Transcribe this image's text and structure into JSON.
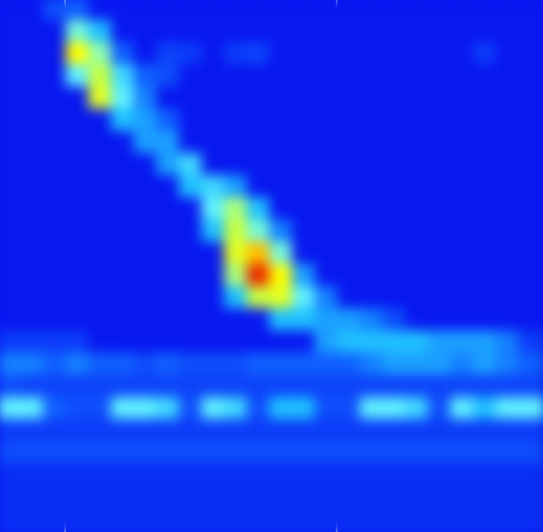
{
  "chart_data": {
    "type": "heatmap",
    "tick_labels": false,
    "xlim": [
      0,
      24
    ],
    "ylim": [
      0,
      24
    ],
    "zlim": [
      0,
      1
    ],
    "vlines": [
      2.88,
      14.88
    ],
    "cells": [
      [
        0,
        0,
        0.15,
        0.2,
        0,
        0,
        0,
        0,
        0,
        0,
        0,
        0,
        0,
        0,
        0,
        0,
        0,
        0,
        0,
        0,
        0,
        0,
        0,
        0
      ],
      [
        0,
        0,
        0,
        0.5,
        0.35,
        0,
        0,
        0,
        0,
        0,
        0,
        0,
        0,
        0,
        0,
        0,
        0,
        0,
        0,
        0,
        0,
        0,
        0,
        0
      ],
      [
        0,
        0,
        0,
        0.75,
        0.55,
        0.2,
        0,
        0.12,
        0.1,
        0,
        0.1,
        0.12,
        0,
        0,
        0,
        0,
        0,
        0,
        0,
        0,
        0,
        0.1,
        0,
        0
      ],
      [
        0,
        0,
        0,
        0.45,
        0.65,
        0.4,
        0.2,
        0.15,
        0,
        0,
        0,
        0,
        0,
        0,
        0,
        0,
        0,
        0,
        0,
        0,
        0,
        0,
        0,
        0
      ],
      [
        0,
        0,
        0,
        0,
        0.7,
        0.45,
        0.25,
        0,
        0,
        0,
        0,
        0,
        0,
        0,
        0,
        0,
        0,
        0,
        0,
        0,
        0,
        0,
        0,
        0
      ],
      [
        0,
        0,
        0,
        0,
        0,
        0.35,
        0.3,
        0.2,
        0,
        0,
        0,
        0,
        0,
        0,
        0,
        0,
        0,
        0,
        0,
        0,
        0,
        0,
        0,
        0
      ],
      [
        0,
        0,
        0,
        0,
        0,
        0,
        0.3,
        0.3,
        0,
        0,
        0,
        0,
        0,
        0,
        0,
        0,
        0,
        0,
        0,
        0,
        0,
        0,
        0,
        0
      ],
      [
        0,
        0,
        0,
        0,
        0,
        0,
        0,
        0.3,
        0.4,
        0,
        0,
        0,
        0,
        0,
        0,
        0,
        0,
        0,
        0,
        0,
        0,
        0,
        0,
        0
      ],
      [
        0,
        0,
        0,
        0,
        0,
        0,
        0,
        0,
        0.35,
        0.4,
        0.3,
        0,
        0,
        0,
        0,
        0,
        0,
        0,
        0,
        0,
        0,
        0,
        0,
        0
      ],
      [
        0,
        0,
        0,
        0,
        0,
        0,
        0,
        0,
        0,
        0.45,
        0.6,
        0.35,
        0,
        0,
        0,
        0,
        0,
        0,
        0,
        0,
        0,
        0,
        0,
        0
      ],
      [
        0,
        0,
        0,
        0,
        0,
        0,
        0,
        0,
        0,
        0.35,
        0.65,
        0.5,
        0.25,
        0,
        0,
        0,
        0,
        0,
        0,
        0,
        0,
        0,
        0,
        0
      ],
      [
        0,
        0,
        0,
        0,
        0,
        0,
        0,
        0,
        0,
        0,
        0.7,
        0.8,
        0.5,
        0,
        0,
        0,
        0,
        0,
        0,
        0,
        0,
        0,
        0,
        0
      ],
      [
        0,
        0,
        0,
        0,
        0,
        0,
        0,
        0,
        0,
        0,
        0.6,
        0.95,
        0.75,
        0.3,
        0,
        0,
        0,
        0,
        0,
        0,
        0,
        0,
        0,
        0
      ],
      [
        0,
        0,
        0,
        0,
        0,
        0,
        0,
        0,
        0,
        0,
        0.35,
        0.65,
        0.7,
        0.45,
        0.25,
        0,
        0,
        0,
        0,
        0,
        0,
        0,
        0,
        0
      ],
      [
        0,
        0,
        0,
        0,
        0,
        0,
        0,
        0,
        0,
        0,
        0,
        0,
        0.35,
        0.35,
        0.3,
        0.3,
        0.25,
        0.15,
        0,
        0,
        0,
        0,
        0,
        0
      ],
      [
        0.1,
        0.1,
        0.1,
        0.1,
        0,
        0,
        0,
        0,
        0,
        0,
        0,
        0,
        0,
        0,
        0.3,
        0.35,
        0.35,
        0.35,
        0.35,
        0.3,
        0.3,
        0.3,
        0.25,
        0.1
      ],
      [
        0.25,
        0.25,
        0.2,
        0.25,
        0.2,
        0.2,
        0.15,
        0.2,
        0.15,
        0.15,
        0.15,
        0.2,
        0.2,
        0.2,
        0.2,
        0.2,
        0.25,
        0.3,
        0.3,
        0.3,
        0.25,
        0.3,
        0.25,
        0.2
      ],
      [
        0.15,
        0.12,
        0.12,
        0.12,
        0.12,
        0.12,
        0.12,
        0.12,
        0.12,
        0.12,
        0.12,
        0.12,
        0.12,
        0.12,
        0.12,
        0.12,
        0.12,
        0.12,
        0.12,
        0.12,
        0.12,
        0.12,
        0.12,
        0.12
      ],
      [
        0.45,
        0.45,
        0.2,
        0.15,
        0.15,
        0.45,
        0.45,
        0.4,
        0.15,
        0.45,
        0.4,
        0.15,
        0.35,
        0.35,
        0.15,
        0.15,
        0.45,
        0.45,
        0.4,
        0.15,
        0.45,
        0.35,
        0.45,
        0.45
      ],
      [
        0.1,
        0.1,
        0.1,
        0.1,
        0.1,
        0.1,
        0.1,
        0.1,
        0.1,
        0.1,
        0.1,
        0.1,
        0.1,
        0.1,
        0.1,
        0.1,
        0.1,
        0.1,
        0.1,
        0.1,
        0.1,
        0.1,
        0.1,
        0.1
      ],
      [
        0.15,
        0.15,
        0.15,
        0.15,
        0.15,
        0.15,
        0.15,
        0.15,
        0.15,
        0.15,
        0.15,
        0.15,
        0.15,
        0.15,
        0.15,
        0.15,
        0.15,
        0.15,
        0.15,
        0.15,
        0.15,
        0.15,
        0.15,
        0.15
      ],
      [
        0.06,
        0.06,
        0.06,
        0.06,
        0.06,
        0.06,
        0.06,
        0.06,
        0.06,
        0.06,
        0.06,
        0.06,
        0.06,
        0.06,
        0.06,
        0.06,
        0.06,
        0.06,
        0.06,
        0.06,
        0.06,
        0.06,
        0.06,
        0.06
      ],
      [
        0.06,
        0.06,
        0.06,
        0.06,
        0.06,
        0.06,
        0.06,
        0.06,
        0.06,
        0.06,
        0.06,
        0.06,
        0.06,
        0.06,
        0.06,
        0.06,
        0.06,
        0.06,
        0.06,
        0.06,
        0.06,
        0.06,
        0.06,
        0.06
      ],
      [
        0.06,
        0.06,
        0.06,
        0.06,
        0.06,
        0.06,
        0.06,
        0.06,
        0.06,
        0.06,
        0.06,
        0.06,
        0.06,
        0.06,
        0.06,
        0.06,
        0.06,
        0.06,
        0.06,
        0.06,
        0.06,
        0.06,
        0.06,
        0.06
      ]
    ]
  }
}
